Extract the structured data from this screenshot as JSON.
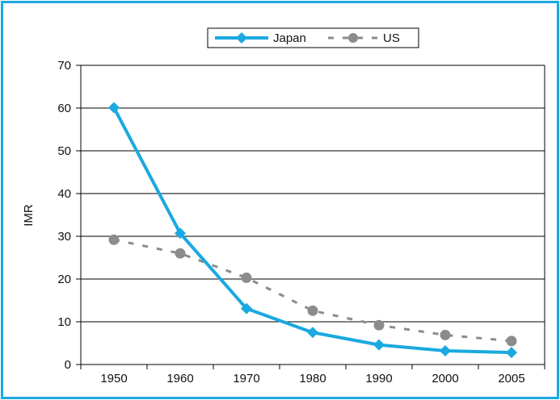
{
  "chart_data": {
    "type": "line",
    "title": "",
    "xlabel": "",
    "ylabel": "IMR",
    "categories": [
      "1950",
      "1960",
      "1970",
      "1980",
      "1990",
      "2000",
      "2005"
    ],
    "x_tick_labels": [
      "1950",
      "1960",
      "1970",
      "1980",
      "1990",
      "2000",
      "2005"
    ],
    "y_tick_labels": [
      "0",
      "10",
      "20",
      "30",
      "40",
      "50",
      "60",
      "70"
    ],
    "ylim": [
      0,
      70
    ],
    "y_ticks": [
      0,
      10,
      20,
      30,
      40,
      50,
      60,
      70
    ],
    "grid": true,
    "legend_position": "top-center",
    "series": [
      {
        "name": "Japan",
        "values": [
          60.1,
          30.7,
          13.1,
          7.5,
          4.6,
          3.2,
          2.8
        ],
        "color": "#1aa9e0",
        "marker": "diamond",
        "line_style": "solid"
      },
      {
        "name": "US",
        "values": [
          29.2,
          26.0,
          20.3,
          12.6,
          9.2,
          6.9,
          5.5
        ],
        "color": "#8c8c8c",
        "marker": "circle",
        "line_style": "dashed"
      }
    ]
  },
  "colors": {
    "frame_border": "#1aa9e0",
    "gridline": "#000000",
    "axis": "#000000"
  }
}
